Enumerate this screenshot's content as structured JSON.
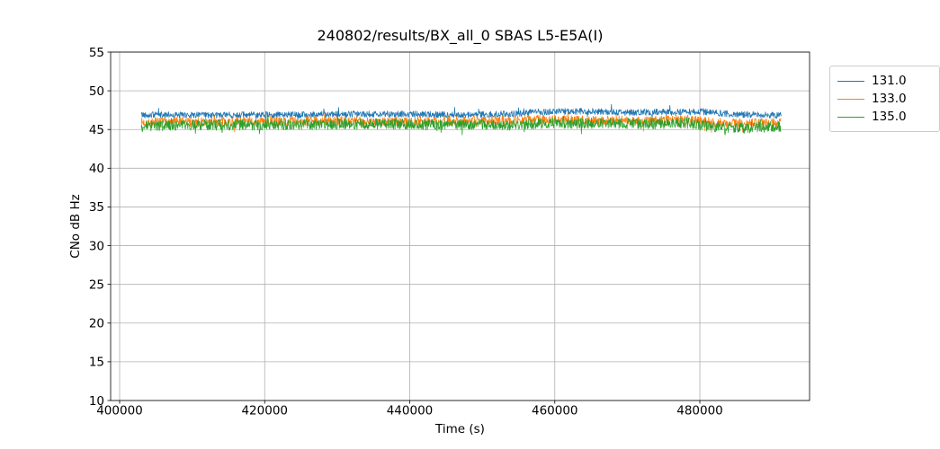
{
  "figure": {
    "background": "#ffffff",
    "text_color": "#000000"
  },
  "chart_data": {
    "type": "line",
    "title": "240802/results/BX_all_0 SBAS L5-E5A(I)",
    "xlabel": "Time (s)",
    "ylabel": "CNo dB Hz",
    "xlim": [
      398760,
      495130
    ],
    "ylim": [
      10,
      55
    ],
    "xticks": [
      400000,
      420000,
      440000,
      460000,
      480000
    ],
    "yticks": [
      10,
      15,
      20,
      25,
      30,
      35,
      40,
      45,
      50,
      55
    ],
    "grid": true,
    "grid_color": "#b0b0b0",
    "axis_color": "#000000",
    "legend": {
      "position": "outside-upper-right",
      "entries": [
        "131.0",
        "133.0",
        "135.0"
      ]
    },
    "series": [
      {
        "name": "131.0",
        "color": "#1f77b4",
        "x_start": 403000,
        "x_end": 491200,
        "baseline": {
          "t": [
            403000,
            412000,
            424000,
            436000,
            448000,
            454000,
            458000,
            464000,
            470000,
            476000,
            480000,
            484000,
            488000,
            491200
          ],
          "v": [
            46.9,
            46.85,
            46.9,
            47.0,
            46.9,
            47.0,
            47.3,
            47.35,
            47.2,
            47.25,
            47.3,
            47.0,
            46.9,
            46.85
          ]
        },
        "noise_amp": 0.42,
        "spike_down": 0.5,
        "spike_up": 0.75,
        "p_down": 0.012,
        "p_up": 0.012,
        "n_points": 1600,
        "seed": 42
      },
      {
        "name": "133.0",
        "color": "#ff7f0e",
        "x_start": 403000,
        "x_end": 491200,
        "baseline": {
          "t": [
            403000,
            410000,
            420000,
            430000,
            440000,
            450000,
            458000,
            464000,
            472000,
            478000,
            482000,
            486000,
            491200
          ],
          "v": [
            45.9,
            46.0,
            46.05,
            46.1,
            46.05,
            46.15,
            46.3,
            46.2,
            46.15,
            46.35,
            45.9,
            45.8,
            45.95
          ]
        },
        "noise_amp": 0.6,
        "spike_down": 1.0,
        "spike_up": 0.5,
        "p_down": 0.02,
        "p_up": 0.012,
        "n_points": 1600,
        "seed": 7
      },
      {
        "name": "135.0",
        "color": "#2ca02c",
        "x_start": 403000,
        "x_end": 491200,
        "baseline": {
          "t": [
            403000,
            408000,
            416000,
            426000,
            436000,
            446000,
            454000,
            460000,
            466000,
            472000,
            478000,
            482000,
            486000,
            491200
          ],
          "v": [
            45.45,
            45.55,
            45.6,
            45.65,
            45.7,
            45.65,
            45.6,
            45.85,
            45.8,
            45.75,
            45.85,
            45.3,
            45.2,
            45.4
          ]
        },
        "noise_amp": 0.7,
        "spike_down": 0.9,
        "spike_up": 0.55,
        "p_down": 0.02,
        "p_up": 0.012,
        "n_points": 1600,
        "seed": 99
      }
    ]
  }
}
